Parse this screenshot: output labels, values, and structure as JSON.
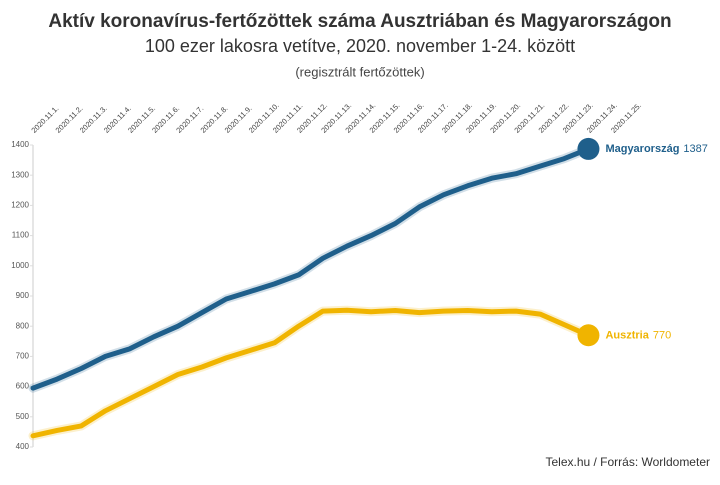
{
  "chart_data": {
    "type": "line",
    "title": "Aktív koronavírus-fertőzöttek száma Ausztriában és Magyarországon",
    "subtitle": "100 ezer lakosra vetítve, 2020. november 1-24. között",
    "note": "(regisztrált fertőzöttek)",
    "source": "Telex.hu / Forrás: Worldometer",
    "categories": [
      "2020.11.1.",
      "2020.11.2.",
      "2020.11.3.",
      "2020.11.4.",
      "2020.11.5.",
      "2020.11.6.",
      "2020.11.7.",
      "2020.11.8.",
      "2020.11.9.",
      "2020.11.10.",
      "2020.11.11.",
      "2020.11.12.",
      "2020.11.13.",
      "2020.11.14.",
      "2020.11.15.",
      "2020.11.16.",
      "2020.11.17.",
      "2020.11.18.",
      "2020.11.19.",
      "2020.11.20.",
      "2020.11.21.",
      "2020.11.22.",
      "2020.11.23.",
      "2020.11.24.",
      "2020.11.25."
    ],
    "series": [
      {
        "name": "Magyarország",
        "color": "#1f5f8b",
        "values": [
          595,
          625,
          660,
          700,
          725,
          765,
          800,
          845,
          890,
          915,
          940,
          970,
          1025,
          1065,
          1100,
          1140,
          1195,
          1235,
          1265,
          1290,
          1305,
          1330,
          1355,
          1387,
          null
        ]
      },
      {
        "name": "Ausztria",
        "color": "#f0b400",
        "values": [
          437,
          455,
          470,
          520,
          560,
          600,
          640,
          665,
          695,
          720,
          745,
          800,
          850,
          853,
          848,
          852,
          845,
          850,
          852,
          848,
          850,
          840,
          805,
          770,
          null
        ]
      }
    ],
    "ylim": [
      400,
      1400
    ],
    "yticks": [
      400,
      500,
      600,
      700,
      800,
      900,
      1000,
      1100,
      1200,
      1300,
      1400
    ],
    "grid": false
  }
}
